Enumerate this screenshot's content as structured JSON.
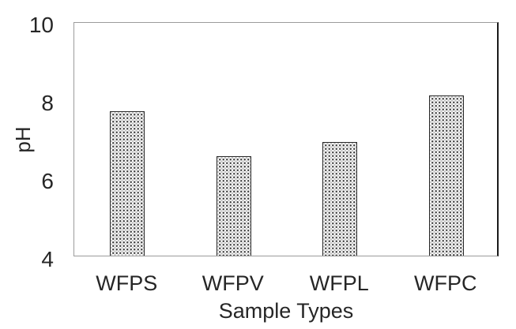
{
  "chart_data": {
    "type": "bar",
    "title": "",
    "categories": [
      "WFPS",
      "WFPV",
      "WFPL",
      "WFPC"
    ],
    "values": [
      7.7,
      6.55,
      6.9,
      8.1
    ],
    "xlabel": "Sample Types",
    "ylabel": "pH",
    "ylim": [
      4,
      10
    ],
    "yticks": [
      4,
      6,
      8,
      10
    ],
    "grid": false,
    "legend": "none",
    "bar_fill": "dotted-pattern",
    "bar_face_color": "#ffffff",
    "bar_border_color": "#262626"
  },
  "colors": {
    "background": "#ffffff",
    "text": "#262626",
    "axis_line": "#9c9c9c",
    "plot_right_border": "#1a1a1a"
  }
}
